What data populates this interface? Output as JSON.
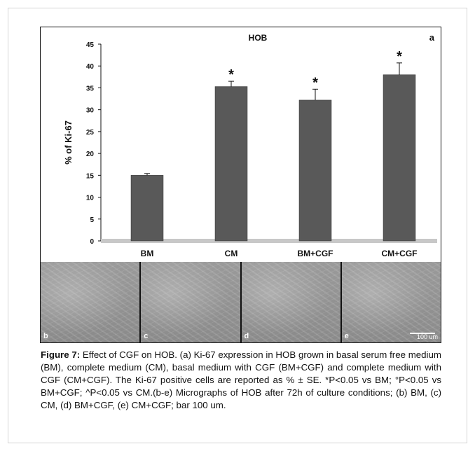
{
  "chart_data": {
    "type": "bar",
    "title": "HOB",
    "panel_letter": "a",
    "ylabel": "% of Ki-67",
    "xlabel": "",
    "categories": [
      "BM",
      "CM",
      "BM+CGF",
      "CM+CGF"
    ],
    "values": [
      15.0,
      35.3,
      32.2,
      38.0
    ],
    "errors": [
      0.4,
      1.2,
      2.5,
      2.7
    ],
    "significance": [
      "",
      "*",
      "*",
      "*"
    ],
    "ylim": [
      0,
      45
    ],
    "yticks": [
      0,
      5,
      10,
      15,
      20,
      25,
      30,
      35,
      40,
      45
    ],
    "bar_color": "#595959",
    "grid": false
  },
  "micrographs": {
    "panels": [
      "b",
      "c",
      "d",
      "e"
    ],
    "scale_label": "100 um"
  },
  "caption": {
    "label": "Figure 7:",
    "text": " Effect of CGF on HOB. (a) Ki-67 expression in HOB grown in basal serum free medium (BM), complete medium (CM), basal medium with CGF (BM+CGF) and complete medium with CGF (CM+CGF). The Ki-67 positive cells are reported as %    ±    SE. *P<0.05 vs BM; °P<0.05 vs BM+CGF; ^P<0.05 vs CM.(b-e) Micrographs of HOB after 72h of culture conditions; (b) BM, (c) CM, (d) BM+CGF, (e) CM+CGF; bar 100 um."
  }
}
